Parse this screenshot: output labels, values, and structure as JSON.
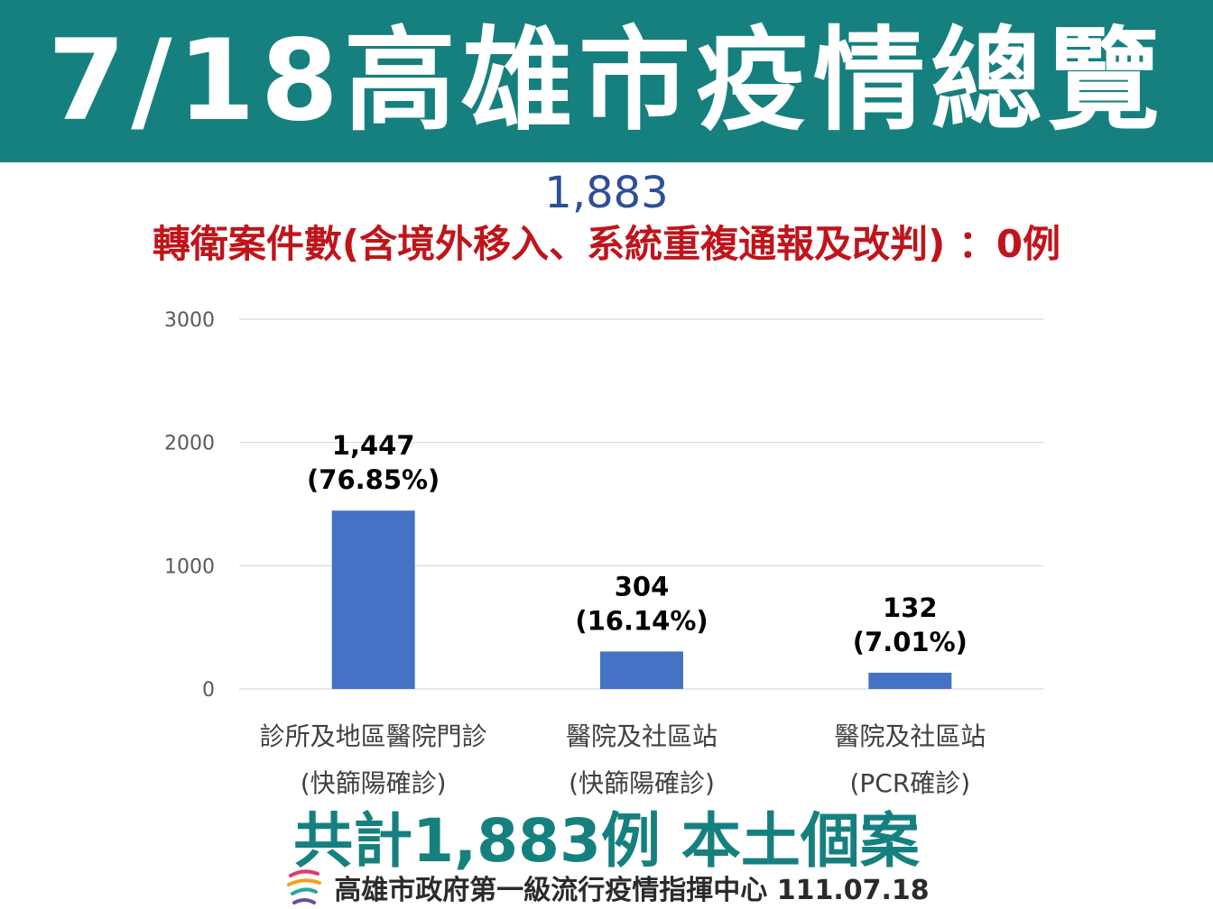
{
  "header": {
    "title": "7/18高雄市疫情總覽"
  },
  "total_number": "1,883",
  "subtitle": "轉衛案件數(含境外移入、系統重複通報及改判) ：0例",
  "chart_data": {
    "type": "bar",
    "categories": [
      [
        "診所及地區醫院門診",
        "(快篩陽確診)"
      ],
      [
        "醫院及社區站",
        "(快篩陽確診)"
      ],
      [
        "醫院及社區站",
        "(PCR確診)"
      ]
    ],
    "values": [
      1447,
      304,
      132
    ],
    "value_labels": [
      "1,447",
      "304",
      "132"
    ],
    "percent_labels": [
      "(76.85%)",
      "(16.14%)",
      "(7.01%)"
    ],
    "ylim": [
      0,
      3000
    ],
    "yticks": [
      0,
      1000,
      2000,
      3000
    ],
    "grid": true,
    "bar_color": "#4472c4"
  },
  "summary": "共計1,883例 本土個案",
  "footer": {
    "logo_icon": "kaohsiung-logo-icon",
    "text": "高雄市政府第一級流行疫情指揮中心 111.07.18"
  },
  "colors": {
    "header_bg": "#16807f",
    "subtitle": "#c0141b",
    "total_number": "#2e4f97",
    "summary": "#16807f"
  }
}
